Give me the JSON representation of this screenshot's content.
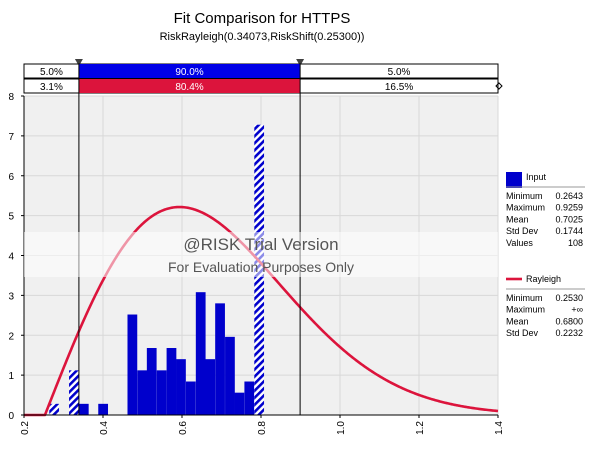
{
  "chart_data": {
    "type": "bar",
    "title": "Fit Comparison for HTTPS",
    "subtitle": "RiskRayleigh(0.34073,RiskShift(0.25300))",
    "xlim": [
      0.2,
      1.4
    ],
    "ylim": [
      0,
      8
    ],
    "x_ticks": [
      "0.2",
      "0.4",
      "0.6",
      "0.8",
      "1.0",
      "1.2",
      "1.4"
    ],
    "y_ticks": [
      "0",
      "1",
      "2",
      "3",
      "4",
      "5",
      "6",
      "7",
      "8"
    ],
    "grid": true,
    "delimiters": {
      "left": "0.339",
      "right": "0.899",
      "left_value": 0.339,
      "right_value": 0.899
    },
    "band_input": {
      "left": "5.0%",
      "middle": "90.0%",
      "right": "5.0%"
    },
    "band_fit": {
      "left": "3.1%",
      "middle": "80.4%",
      "right": "16.5%"
    },
    "bin_width": 0.0247,
    "bins": [
      {
        "x": 0.264,
        "y": 0.28,
        "outside": true
      },
      {
        "x": 0.289,
        "y": 0.0,
        "outside": true
      },
      {
        "x": 0.314,
        "y": 1.12,
        "outside": true
      },
      {
        "x": 0.339,
        "y": 0.28,
        "outside": false
      },
      {
        "x": 0.363,
        "y": 0.0,
        "outside": false
      },
      {
        "x": 0.388,
        "y": 0.28,
        "outside": false
      },
      {
        "x": 0.413,
        "y": 0.0,
        "outside": false
      },
      {
        "x": 0.437,
        "y": 0.0,
        "outside": false
      },
      {
        "x": 0.462,
        "y": 2.52,
        "outside": false
      },
      {
        "x": 0.487,
        "y": 1.12,
        "outside": false
      },
      {
        "x": 0.511,
        "y": 1.68,
        "outside": false
      },
      {
        "x": 0.536,
        "y": 1.12,
        "outside": false
      },
      {
        "x": 0.561,
        "y": 1.68,
        "outside": false
      },
      {
        "x": 0.585,
        "y": 1.4,
        "outside": false
      },
      {
        "x": 0.61,
        "y": 0.84,
        "outside": false
      },
      {
        "x": 0.635,
        "y": 3.08,
        "outside": false
      },
      {
        "x": 0.659,
        "y": 1.4,
        "outside": false
      },
      {
        "x": 0.684,
        "y": 2.8,
        "outside": false
      },
      {
        "x": 0.709,
        "y": 1.96,
        "outside": false
      },
      {
        "x": 0.733,
        "y": 0.56,
        "outside": false
      },
      {
        "x": 0.758,
        "y": 0.84,
        "outside": false
      },
      {
        "x": 0.783,
        "y": 7.28,
        "outside": true
      }
    ],
    "fit_curve": {
      "sigma": 0.34073,
      "shift": 0.253,
      "scale": 2.93
    },
    "legend": {
      "placement": "right",
      "input": {
        "name": "Input",
        "stats": [
          {
            "label": "Minimum",
            "value": "0.2643"
          },
          {
            "label": "Maximum",
            "value": "0.9259"
          },
          {
            "label": "Mean",
            "value": "0.7025"
          },
          {
            "label": "Std Dev",
            "value": "0.1744"
          },
          {
            "label": "Values",
            "value": "108"
          }
        ]
      },
      "fit": {
        "name": "Rayleigh",
        "stats": [
          {
            "label": "Minimum",
            "value": "0.2530"
          },
          {
            "label": "Maximum",
            "value": "+∞"
          },
          {
            "label": "Mean",
            "value": "0.6800"
          },
          {
            "label": "Std Dev",
            "value": "0.2232"
          }
        ]
      }
    }
  },
  "watermark": {
    "line1": "@RISK Trial Version",
    "line2": "For Evaluation Purposes Only"
  },
  "colors": {
    "bar": "#0000cc",
    "bar_outside": "#0000cc",
    "fit_line": "#dc143c",
    "band_input": "#0000e6",
    "band_fit": "#dc143c",
    "plot_bg": "#f0f0f0",
    "grid": "#d8d8d8"
  }
}
